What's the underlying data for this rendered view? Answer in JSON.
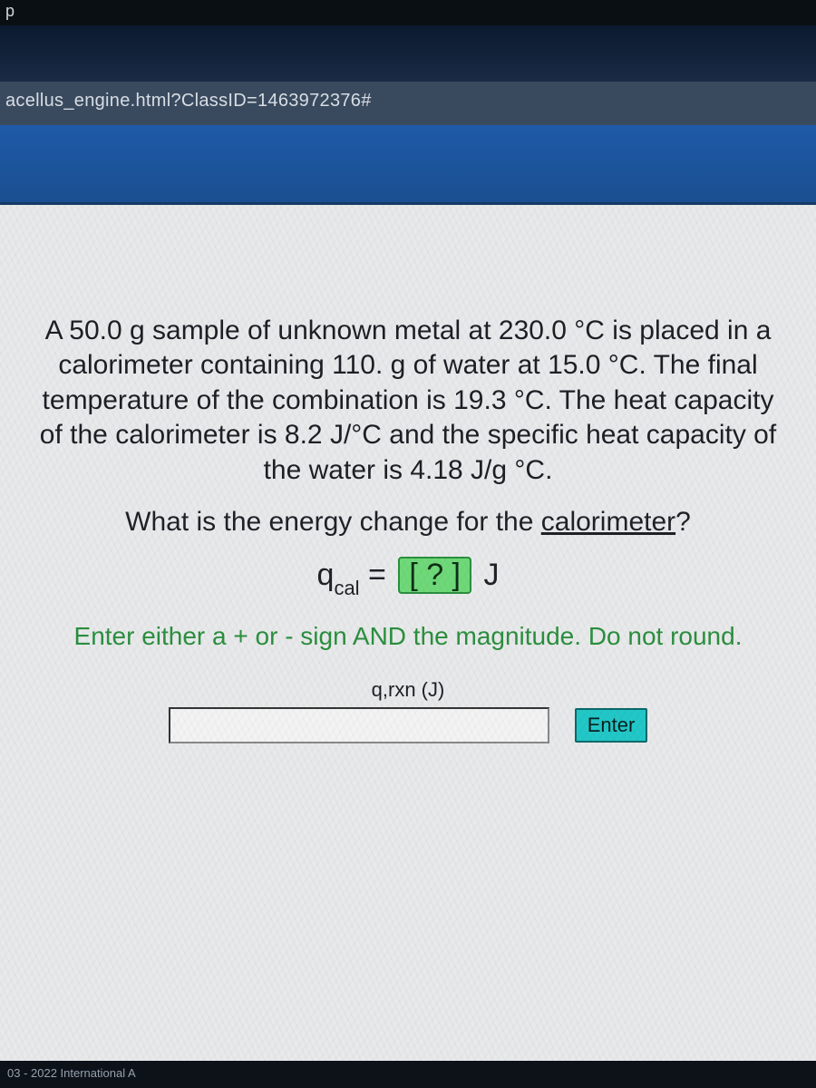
{
  "chrome": {
    "partial_tab_letter": "p",
    "url_fragment": "acellus_engine.html?ClassID=1463972376#",
    "footer_text": "03 - 2022 International A"
  },
  "colors": {
    "page_bg": "#e8e9ea",
    "blue_band_top": "#1e5aa8",
    "blue_band_bottom": "#1b4f91",
    "dark_band": "#0b1a2e",
    "url_bar": "#3a4a5e",
    "answer_box_fill": "#6fd979",
    "answer_box_border": "#2b8f3e",
    "instruction_text": "#2a8f3e",
    "enter_btn": "#22c7c7"
  },
  "problem": {
    "body": "A 50.0 g sample of unknown metal at 230.0 °C is placed in a calorimeter containing 110. g of water at 15.0 °C. The final temperature of the combination is 19.3 °C. The heat capacity of the calorimeter is 8.2 J/°C and the specific heat capacity of the water is 4.18 J/g °C.",
    "question_prefix": "What is the energy change for the ",
    "question_underlined": "calorimeter",
    "question_suffix": "?",
    "equation_lhs_sym": "q",
    "equation_lhs_sub": "cal",
    "equation_eq": " = ",
    "equation_box": "[ ? ]",
    "equation_unit": " J"
  },
  "instruction": "Enter either a + or - sign AND the magnitude. Do not round.",
  "input": {
    "label": "q,rxn (J)",
    "value": "",
    "placeholder": "",
    "enter_label": "Enter"
  }
}
